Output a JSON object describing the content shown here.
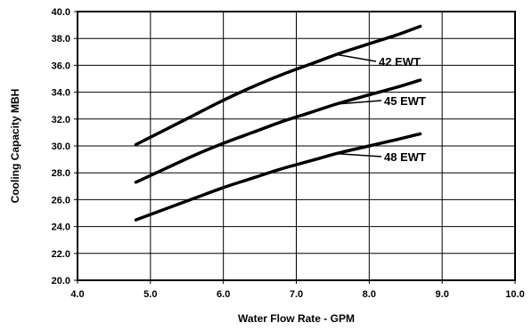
{
  "chart_data": {
    "type": "line",
    "xlabel": "Water Flow Rate - GPM",
    "ylabel": "Cooling Capacity MBH",
    "xlim": [
      4.0,
      10.0
    ],
    "ylim": [
      20.0,
      40.0
    ],
    "x_ticks": [
      "4.0",
      "5.0",
      "6.0",
      "7.0",
      "8.0",
      "9.0",
      "10.0"
    ],
    "y_ticks": [
      "20.0",
      "22.0",
      "24.0",
      "26.0",
      "28.0",
      "30.0",
      "32.0",
      "34.0",
      "36.0",
      "38.0",
      "40.0"
    ],
    "grid": true,
    "series": [
      {
        "name": "42 EWT",
        "x": [
          4.8,
          5.2,
          5.6,
          6.0,
          6.4,
          6.8,
          7.2,
          7.6,
          8.0,
          8.4,
          8.7
        ],
        "y": [
          30.1,
          31.2,
          32.3,
          33.4,
          34.4,
          35.3,
          36.1,
          36.9,
          37.6,
          38.3,
          38.9
        ]
      },
      {
        "name": "45 EWT",
        "x": [
          4.8,
          5.2,
          5.6,
          6.0,
          6.4,
          6.8,
          7.2,
          7.6,
          8.0,
          8.4,
          8.7
        ],
        "y": [
          27.3,
          28.3,
          29.3,
          30.2,
          31.0,
          31.8,
          32.5,
          33.2,
          33.8,
          34.4,
          34.9
        ]
      },
      {
        "name": "48 EWT",
        "x": [
          4.8,
          5.2,
          5.6,
          6.0,
          6.4,
          6.8,
          7.2,
          7.6,
          8.0,
          8.4,
          8.7
        ],
        "y": [
          24.5,
          25.3,
          26.1,
          26.9,
          27.6,
          28.3,
          28.9,
          29.5,
          30.0,
          30.5,
          30.9
        ]
      }
    ]
  }
}
